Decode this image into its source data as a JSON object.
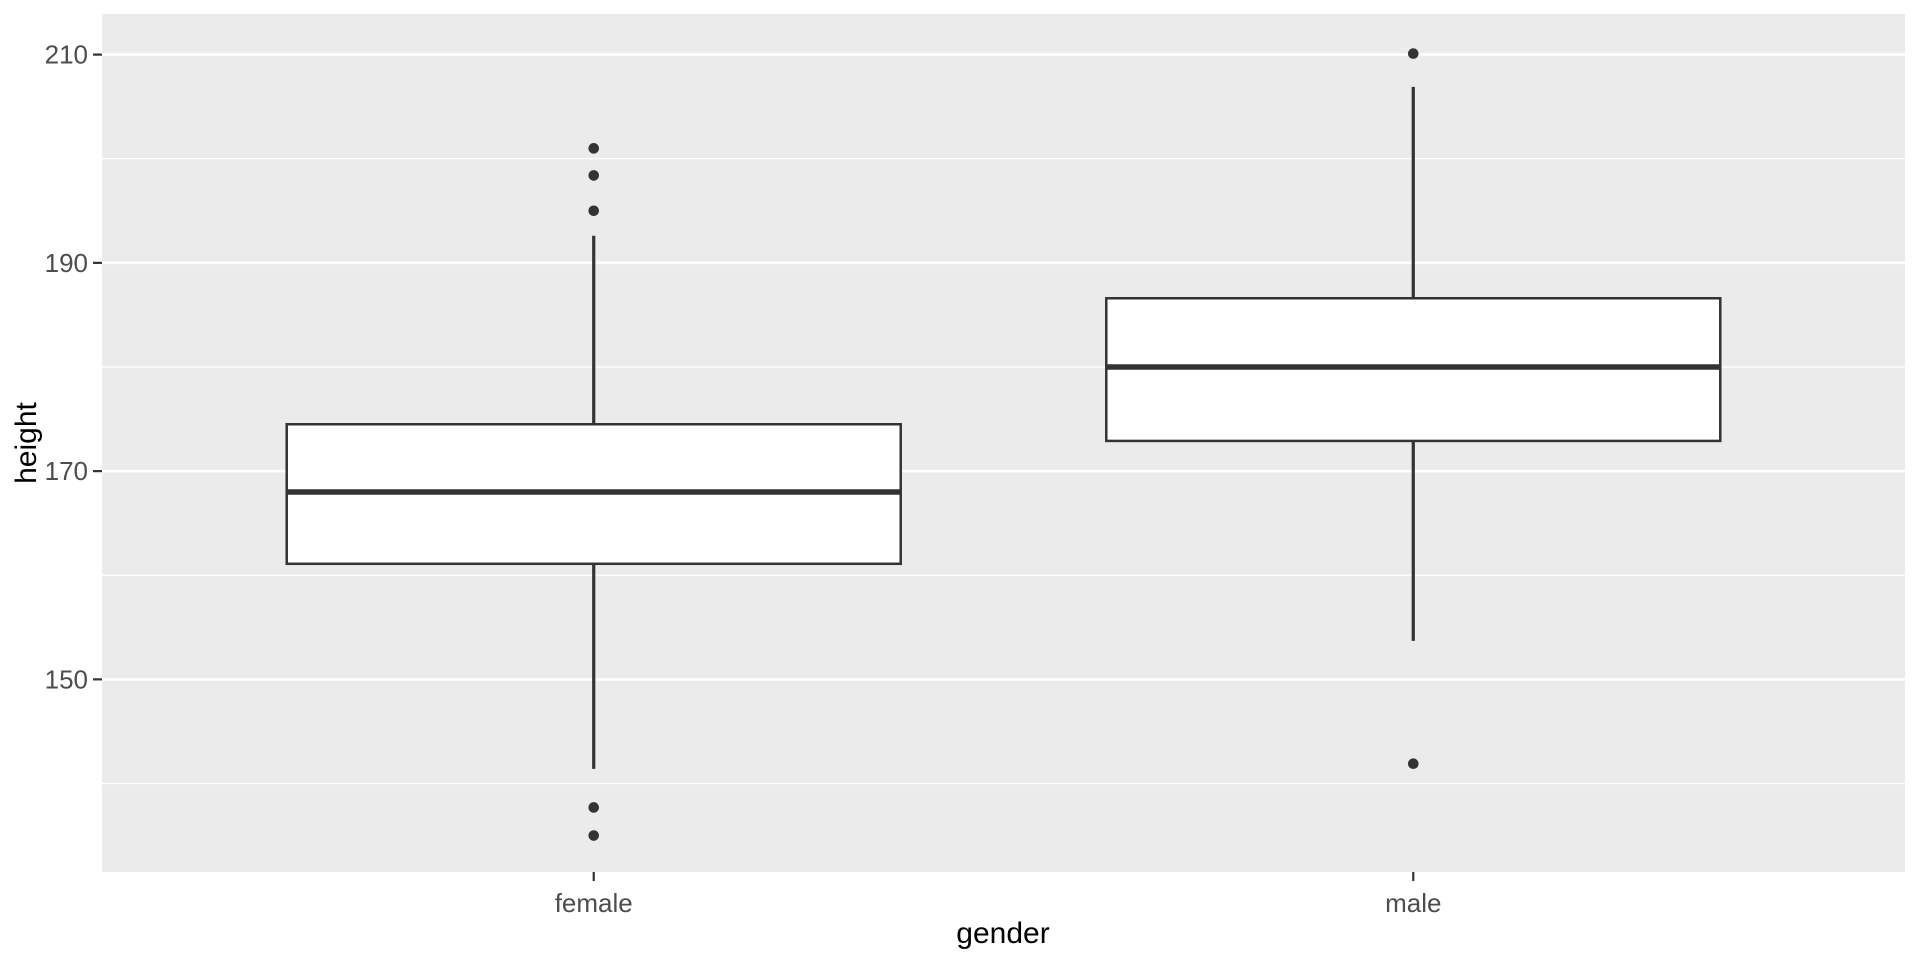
{
  "chart_data": {
    "type": "boxplot",
    "title": "",
    "xlabel": "gender",
    "ylabel": "height",
    "categories": [
      "female",
      "male"
    ],
    "y_axis": {
      "tick_values": [
        150,
        170,
        190,
        210
      ],
      "tick_labels": [
        "150",
        "170",
        "190",
        "210"
      ],
      "minor_tick_values": [
        140,
        160,
        180,
        200
      ],
      "ylim": [
        131.5,
        213.9
      ]
    },
    "series": [
      {
        "name": "female",
        "whisker_low": 141.4,
        "q1": 161.1,
        "median": 168.0,
        "q3": 174.5,
        "whisker_high": 192.6,
        "outliers": [
          135.0,
          137.7,
          195.0,
          198.4,
          201.0
        ]
      },
      {
        "name": "male",
        "whisker_low": 153.7,
        "q1": 172.9,
        "median": 180.0,
        "q3": 186.6,
        "whisker_high": 206.9,
        "outliers": [
          141.9,
          210.1
        ]
      }
    ],
    "grid": true,
    "legend_position": "none",
    "colors": {
      "page_bg": "#FFFFFF",
      "panel_bg": "#EBEBEB",
      "grid": "#FFFFFF",
      "box_stroke": "#333333",
      "box_fill": "#FFFFFF",
      "median": "#333333",
      "whisker": "#333333",
      "outlier": "#333333",
      "axis_tick": "#333333",
      "tick_label": "#4D4D4D",
      "axis_title": "#000000"
    }
  }
}
